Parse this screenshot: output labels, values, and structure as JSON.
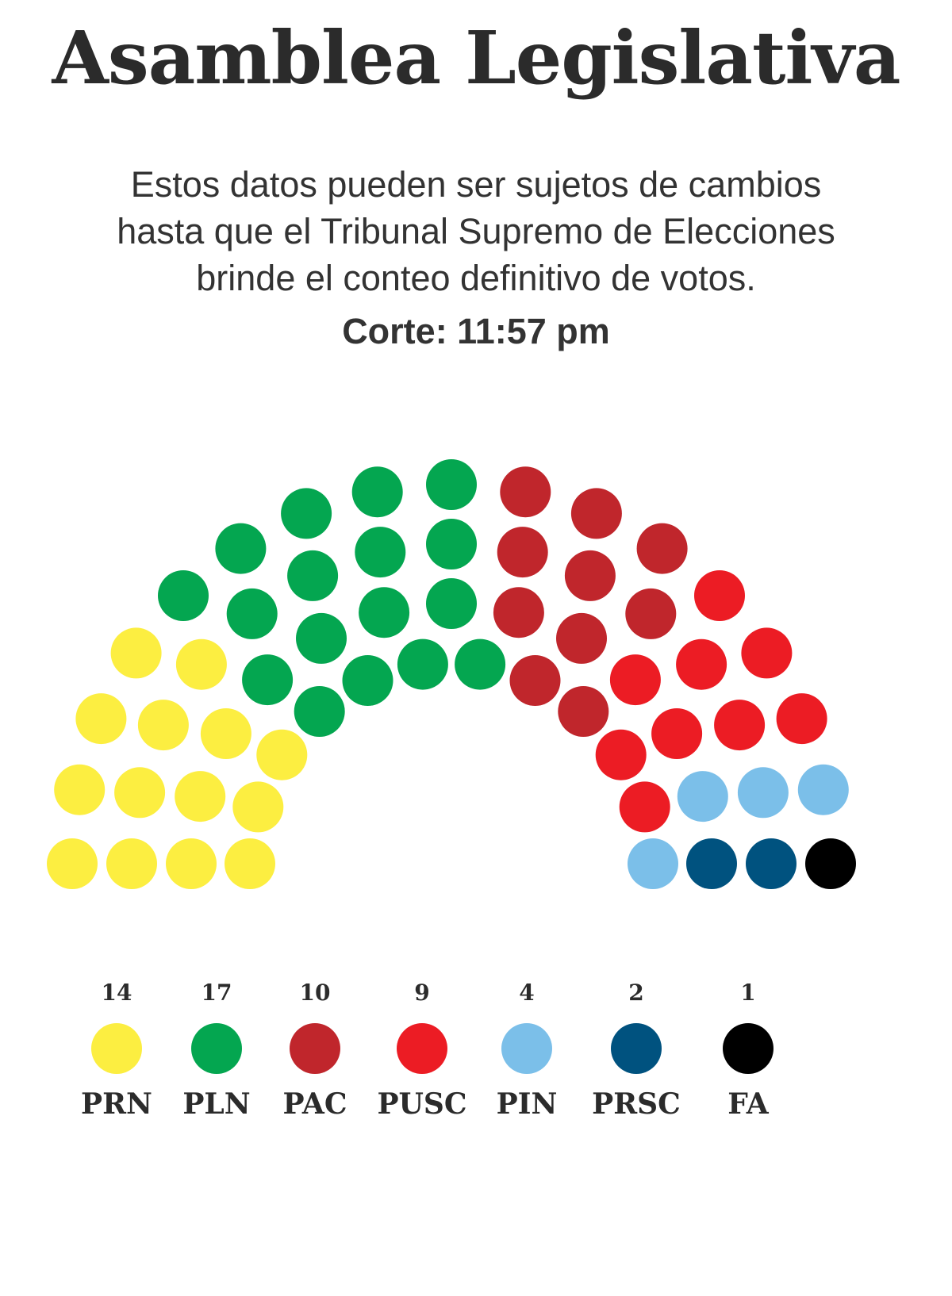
{
  "title": "Asamblea Legislativa",
  "subtitle_lines": [
    "Estos datos pueden ser sujetos de cambios",
    "hasta que el Tribunal Supremo de Elecciones",
    "brinde el conteo definitivo de votos."
  ],
  "cutoff": "Corte: 11:57 pm",
  "chart_data": {
    "type": "parliament",
    "total_seats": 57,
    "parties": [
      {
        "name": "PRN",
        "seats": 14,
        "color": "#fcee41"
      },
      {
        "name": "PLN",
        "seats": 17,
        "color": "#04a650"
      },
      {
        "name": "PAC",
        "seats": 10,
        "color": "#c0262c"
      },
      {
        "name": "PUSC",
        "seats": 9,
        "color": "#ec1c24"
      },
      {
        "name": "PIN",
        "seats": 4,
        "color": "#7bbfe9"
      },
      {
        "name": "PRSC",
        "seats": 2,
        "color": "#00527f"
      },
      {
        "name": "FA",
        "seats": 1,
        "color": "#000000"
      }
    ]
  }
}
